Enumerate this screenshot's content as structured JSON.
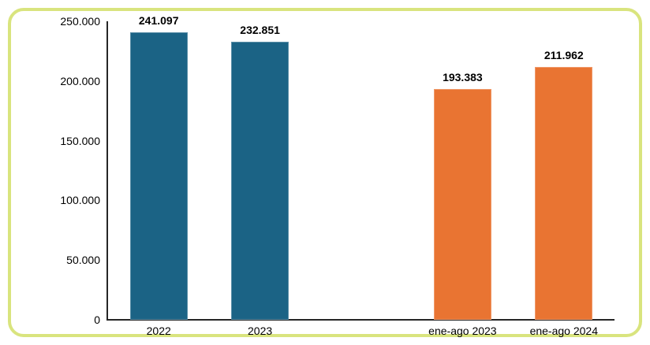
{
  "chart_data": {
    "type": "bar",
    "title": "",
    "xlabel": "",
    "ylabel": "",
    "categories": [
      "2022",
      "2023",
      "ene-ago 2023",
      "ene-ago 2024"
    ],
    "values": [
      241097,
      232851,
      193383,
      211962
    ],
    "value_labels": [
      "241.097",
      "232.851",
      "193.383",
      "211.962"
    ],
    "bar_colors": [
      "#1B6385",
      "#1B6385",
      "#E97432",
      "#E97432"
    ],
    "ylim": [
      0,
      250000
    ],
    "yticks": [
      {
        "value": 0,
        "label": "0"
      },
      {
        "value": 50000,
        "label": "50.000"
      },
      {
        "value": 100000,
        "label": "100.000"
      },
      {
        "value": 150000,
        "label": "150.000"
      },
      {
        "value": 200000,
        "label": "200.000"
      },
      {
        "value": 250000,
        "label": "250.000"
      }
    ],
    "grid": false,
    "legend_position": "none",
    "layout_slots": 5,
    "bar_slot_index": [
      0,
      1,
      3,
      4
    ]
  },
  "frame": {
    "border_color": "#D9E47E",
    "background_color": "#FFFFFF"
  },
  "colors": {
    "teal_bar": "#1B6385",
    "orange_bar": "#E97432",
    "axis_line": "#262626",
    "label_text": "#000000"
  }
}
